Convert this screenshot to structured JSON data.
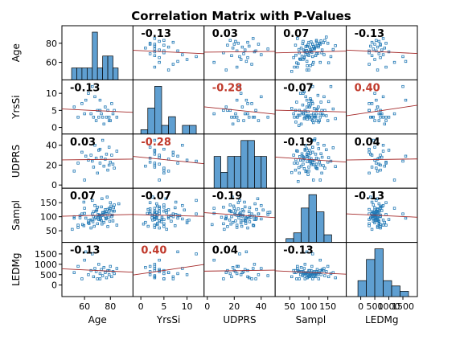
{
  "chart_data": {
    "type": "scatter",
    "title": "Correlation Matrix with P-Values",
    "variables": [
      "Age",
      "YrsSi",
      "UDPRS",
      "Sampl",
      "LEDMg"
    ],
    "correlations": [
      [
        null,
        -0.13,
        0.03,
        0.07,
        -0.13
      ],
      [
        -0.13,
        null,
        -0.28,
        -0.07,
        0.4
      ],
      [
        0.03,
        -0.28,
        null,
        -0.19,
        0.04
      ],
      [
        0.07,
        -0.07,
        -0.19,
        null,
        -0.13
      ],
      [
        -0.13,
        0.4,
        0.04,
        -0.13,
        null
      ]
    ],
    "correlation_labels": [
      [
        "",
        "-0.13",
        "0.03",
        "0.07",
        "-0.13"
      ],
      [
        "-0.13",
        "",
        "-0.28",
        "-0.07",
        "0.40"
      ],
      [
        "0.03",
        "-0.28",
        "",
        "-0.19",
        "0.04"
      ],
      [
        "0.07",
        "-0.07",
        "-0.19",
        "",
        "-0.13"
      ],
      [
        "-0.13",
        "0.40",
        "0.04",
        "-0.13",
        ""
      ]
    ],
    "significant": [
      [
        false,
        false,
        false,
        false,
        false
      ],
      [
        false,
        false,
        true,
        false,
        true
      ],
      [
        false,
        true,
        false,
        false,
        false
      ],
      [
        false,
        false,
        false,
        false,
        false
      ],
      [
        false,
        true,
        false,
        false,
        false
      ]
    ],
    "ranges": [
      [
        45,
        95
      ],
      [
        -1,
        13
      ],
      [
        0,
        48
      ],
      [
        20,
        190
      ],
      [
        -400,
        1900
      ]
    ],
    "ticks": [
      [
        60,
        80
      ],
      [
        0,
        5,
        10
      ],
      [
        0,
        20,
        40
      ],
      [
        50,
        100,
        150
      ],
      [
        0,
        500,
        1000,
        1500
      ]
    ],
    "tick_labels": [
      [
        "60",
        "80"
      ],
      [
        "0",
        "5",
        "10"
      ],
      [
        "0",
        "20",
        "40"
      ],
      [
        "50",
        "100",
        "150"
      ],
      [
        "0",
        "500",
        "1000",
        "1500"
      ]
    ],
    "histograms": [
      {
        "edges": [
          50,
          54,
          58,
          62,
          66,
          70,
          74,
          78,
          82,
          86
        ],
        "counts": [
          1,
          1,
          1,
          1,
          4,
          1,
          2,
          2,
          1
        ]
      },
      {
        "edges": [
          0,
          1.5,
          3,
          4.5,
          6,
          7.5,
          9,
          10.5,
          12
        ],
        "counts": [
          1,
          6,
          11,
          2,
          4,
          0,
          2,
          2
        ]
      },
      {
        "edges": [
          5,
          10,
          15,
          20,
          25,
          30,
          35,
          40,
          44
        ],
        "counts": [
          2,
          1,
          2,
          2,
          3,
          3,
          2,
          2
        ]
      },
      {
        "edges": [
          40,
          60,
          80,
          100,
          120,
          140,
          160
        ],
        "counts": [
          2,
          5,
          18,
          25,
          16,
          4
        ]
      },
      {
        "edges": [
          -100,
          200,
          500,
          800,
          1100,
          1400,
          1700
        ],
        "counts": [
          3,
          7,
          9,
          3,
          2,
          1
        ]
      }
    ],
    "scatter": {
      "age": [
        52,
        55,
        58,
        60,
        63,
        65,
        67,
        68,
        69,
        70,
        71,
        72,
        73,
        74,
        75,
        76,
        77,
        78,
        79,
        80,
        81,
        82,
        83,
        85,
        61,
        66,
        72,
        79
      ],
      "yrssi": [
        6,
        3,
        7,
        4,
        10,
        4,
        3,
        9,
        2,
        5,
        3,
        8,
        4,
        3,
        1,
        6,
        3,
        5,
        2,
        2,
        7,
        4,
        5,
        3,
        8,
        12,
        5,
        3
      ],
      "udprs": [
        14,
        22,
        33,
        5,
        25,
        30,
        18,
        40,
        27,
        12,
        35,
        22,
        28,
        45,
        19,
        26,
        31,
        15,
        38,
        23,
        30,
        21,
        17,
        34,
        29,
        24,
        36,
        20
      ],
      "sampl": [
        95,
        70,
        110,
        130,
        85,
        60,
        100,
        140,
        120,
        75,
        90,
        105,
        135,
        115,
        80,
        125,
        95,
        65,
        110,
        150,
        100,
        85,
        120,
        70,
        95,
        110,
        90,
        130
      ],
      "ledmg": [
        600,
        900,
        300,
        1200,
        500,
        700,
        400,
        800,
        650,
        300,
        1000,
        550,
        750,
        450,
        850,
        600,
        350,
        700,
        500,
        900,
        400,
        650,
        550,
        800,
        1600,
        1500,
        300,
        700
      ]
    },
    "sampl_extra": [
      55,
      62,
      68,
      72,
      78,
      82,
      88,
      92,
      96,
      98,
      102,
      104,
      106,
      108,
      112,
      114,
      118,
      122,
      126,
      128,
      132,
      138,
      142,
      146,
      152,
      158,
      164,
      170,
      100,
      96,
      104,
      112,
      88,
      76,
      118,
      124,
      66,
      134,
      94,
      108,
      86,
      116,
      74,
      102,
      98,
      92,
      110,
      106,
      84,
      120
    ],
    "ledmg_extra": [
      400,
      600,
      300,
      700,
      500,
      650,
      800,
      550,
      350,
      600,
      700,
      450,
      500,
      900,
      400,
      650,
      550,
      750,
      300,
      600,
      500,
      700,
      450,
      650,
      400,
      550,
      600,
      350,
      700,
      500,
      450,
      600,
      550,
      650,
      400,
      500,
      600,
      700,
      450,
      550,
      600,
      500,
      650,
      400,
      550,
      600,
      500,
      700,
      450,
      600
    ],
    "axis_labels_x": [
      "Age",
      "YrsSi",
      "UDPRS",
      "Sampl",
      "LEDMg"
    ],
    "axis_labels_y": [
      "Age",
      "YrsSi",
      "UDPRS",
      "Sampl",
      "LEDMg"
    ],
    "colors": {
      "bar": "#5f9fd1",
      "point": "#1f77b4",
      "fit": "#a52a2a",
      "significant": "#c0392b",
      "text": "#000000"
    }
  }
}
